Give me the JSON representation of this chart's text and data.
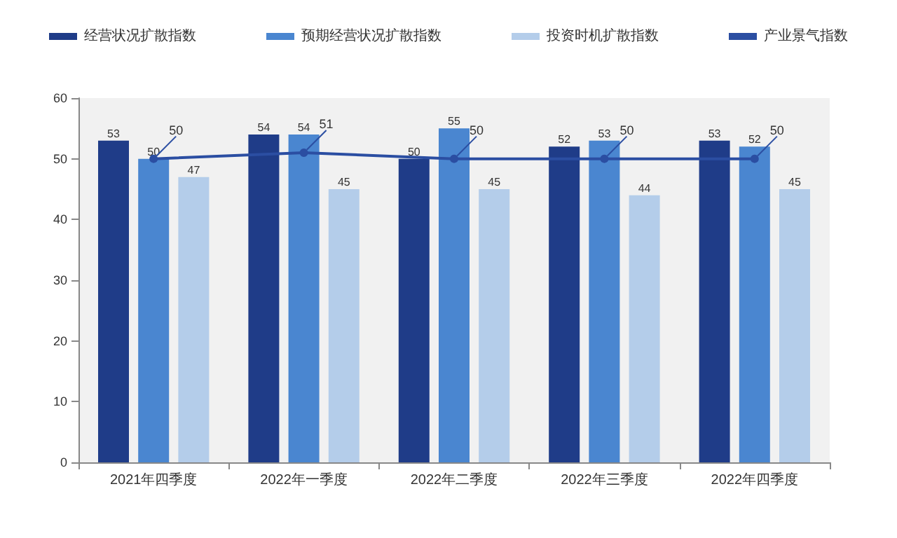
{
  "chart_data": {
    "type": "bar",
    "categories": [
      "2021年四季度",
      "2022年一季度",
      "2022年二季度",
      "2022年三季度",
      "2022年四季度"
    ],
    "series": [
      {
        "name": "经营状况扩散指数",
        "color": "#1f3c88",
        "values": [
          53,
          54,
          50,
          52,
          53
        ]
      },
      {
        "name": "预期经营状况扩散指数",
        "color": "#4a86d0",
        "values": [
          50,
          54,
          55,
          53,
          52
        ]
      },
      {
        "name": "投资时机扩散指数",
        "color": "#b4cdea",
        "values": [
          47,
          45,
          45,
          44,
          45
        ]
      },
      {
        "name": "产业景气指数",
        "type": "line",
        "color": "#2b4ea2",
        "values": [
          50,
          51,
          50,
          50,
          50
        ]
      }
    ],
    "ylim": [
      0,
      60
    ],
    "yticks": [
      0,
      10,
      20,
      30,
      40,
      50,
      60
    ],
    "grid": false,
    "legend": "top",
    "marker": "circle",
    "data_labels": true
  }
}
